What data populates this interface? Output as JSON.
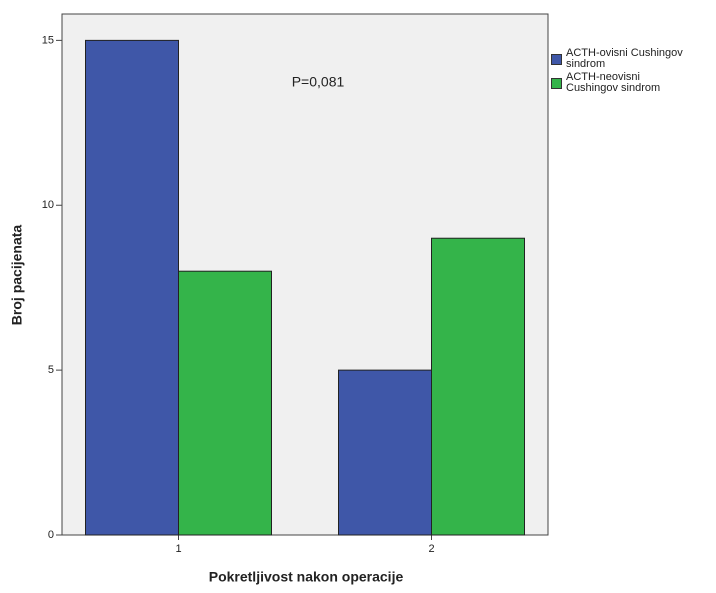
{
  "chart_data": {
    "type": "bar",
    "xlabel": "Pokretljivost nakon operacije",
    "ylabel": "Broj pacijenata",
    "annotation": "P=0,081",
    "categories": [
      "1",
      "2"
    ],
    "series": [
      {
        "name": "ACTH-ovisni Cushingov sindrom",
        "color": "#3f57a8",
        "values": [
          15,
          5
        ]
      },
      {
        "name": "ACTH-neovisni Cushingov sindrom",
        "color": "#34b44a",
        "values": [
          8,
          9
        ]
      }
    ],
    "ylim": [
      0,
      15.8
    ],
    "yticks": [
      0,
      5,
      10,
      15
    ],
    "legend": "right"
  }
}
